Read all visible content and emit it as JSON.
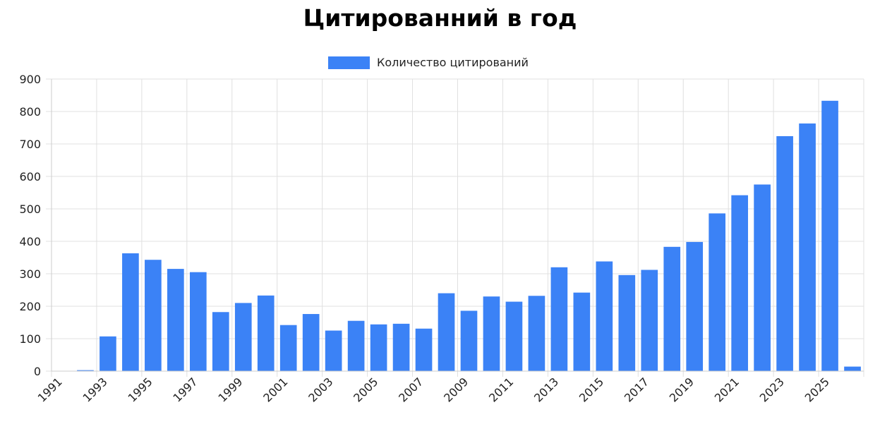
{
  "chart_data": {
    "type": "bar",
    "title": "Цитированний в год",
    "legend": {
      "label": "Количество цитирований",
      "placement": "top-center"
    },
    "series": [
      {
        "name": "Количество цитирований",
        "color": "#3b82f6",
        "values": [
          1,
          3,
          107,
          363,
          343,
          315,
          305,
          182,
          210,
          233,
          142,
          176,
          125,
          155,
          144,
          146,
          131,
          240,
          186,
          230,
          214,
          232,
          320,
          242,
          338,
          296,
          312,
          383,
          398,
          486,
          542,
          575,
          724,
          763,
          833,
          14
        ]
      }
    ],
    "categories": [
      "1991",
      "1992",
      "1993",
      "1994",
      "1995",
      "1996",
      "1997",
      "1998",
      "1999",
      "2000",
      "2001",
      "2002",
      "2003",
      "2004",
      "2005",
      "2006",
      "2007",
      "2008",
      "2009",
      "2010",
      "2011",
      "2012",
      "2013",
      "2014",
      "2015",
      "2016",
      "2017",
      "2018",
      "2019",
      "2020",
      "2021",
      "2022",
      "2023",
      "2024",
      "2025",
      "2026"
    ],
    "x_tick_labels": [
      "1991",
      "1993",
      "1995",
      "1997",
      "1999",
      "2001",
      "2003",
      "2005",
      "2007",
      "2009",
      "2011",
      "2013",
      "2015",
      "2017",
      "2019",
      "2021",
      "2023",
      "2025"
    ],
    "y_ticks": [
      0,
      100,
      200,
      300,
      400,
      500,
      600,
      700,
      800,
      900
    ],
    "ylim": [
      0,
      900
    ],
    "xlabel": "",
    "ylabel": "",
    "grid": true,
    "colors": {
      "bar": "#3b82f6",
      "grid": "#e0e0e0",
      "axis": "#cccccc"
    }
  }
}
